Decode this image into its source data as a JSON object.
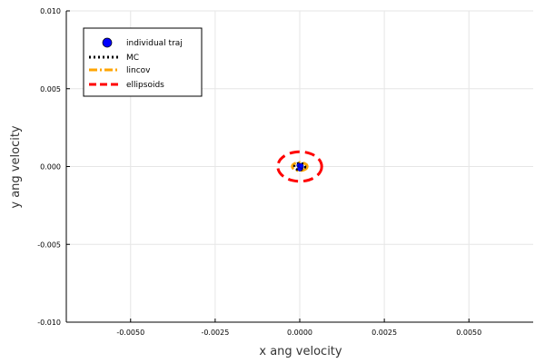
{
  "chart_data": {
    "type": "scatter",
    "xlabel": "x ang velocity",
    "ylabel": "y ang velocity",
    "xlim": [
      -0.0069,
      0.0069
    ],
    "ylim": [
      -0.01,
      0.01
    ],
    "grid": true,
    "legend_position": "top-left",
    "x_ticks": [
      -0.005,
      -0.0025,
      0.0,
      0.0025,
      0.005
    ],
    "x_tick_labels": [
      "-0.0050",
      "-0.0025",
      "0.0000",
      "0.0025",
      "0.0050"
    ],
    "y_ticks": [
      -0.01,
      -0.005,
      0.0,
      0.005,
      0.01
    ],
    "y_tick_labels": [
      "-0.010",
      "-0.005",
      "0.000",
      "0.005",
      "0.010"
    ],
    "series": [
      {
        "name": "individual traj",
        "kind": "scatter",
        "color": "#0000ff",
        "points": [
          {
            "x": 0.0,
            "y": 0.0
          },
          {
            "x": 3e-05,
            "y": -0.0001
          },
          {
            "x": -2e-05,
            "y": 8e-05
          },
          {
            "x": 0.0,
            "y": -0.00015
          },
          {
            "x": 4e-05,
            "y": 5e-05
          }
        ]
      },
      {
        "name": "MC",
        "kind": "ellipse",
        "style": "dotted",
        "color": "#000000",
        "center": [
          0.0,
          0.0
        ],
        "radii": [
          0.00016,
          0.00022
        ]
      },
      {
        "name": "lincov",
        "kind": "ellipse",
        "style": "dashdot",
        "color": "#ffa500",
        "center": [
          0.0,
          0.0
        ],
        "radii": [
          0.00022,
          0.00026
        ]
      },
      {
        "name": "ellipsoids",
        "kind": "ellipse",
        "style": "dashed",
        "color": "#ff0000",
        "center": [
          0.0,
          0.0
        ],
        "radii": [
          0.00065,
          0.00095
        ]
      }
    ]
  }
}
